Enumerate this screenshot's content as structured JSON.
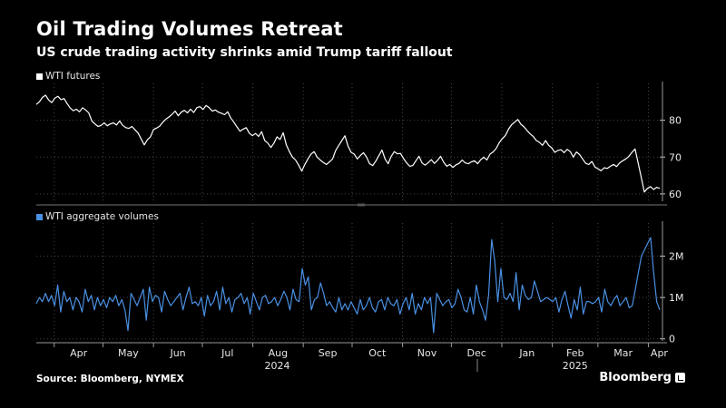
{
  "title": "Oil Trading Volumes Retreat",
  "subtitle": "US crude trading activity shrinks amid Trump tariff fallout",
  "source": "Source: Bloomberg, NYMEX",
  "brand": "Bloomberg",
  "colors": {
    "background": "#000000",
    "price_line": "#ffffff",
    "volume_line": "#4a90e2",
    "grid": "#555555"
  },
  "chart_data": [
    {
      "type": "line",
      "name": "price-panel",
      "title": "",
      "legend": "top-left",
      "series": [
        {
          "name": "WTI futures",
          "x_start": "2024-03-21",
          "x_end": "2025-04-08",
          "values": [
            84.3,
            85.0,
            86.2,
            86.8,
            85.5,
            84.8,
            86.0,
            86.5,
            85.6,
            85.9,
            84.5,
            83.3,
            82.6,
            83.0,
            82.3,
            83.4,
            82.8,
            82.0,
            79.8,
            79.0,
            78.3,
            78.6,
            79.3,
            78.5,
            79.0,
            79.3,
            78.7,
            79.8,
            78.6,
            78.0,
            77.8,
            78.3,
            77.4,
            76.5,
            74.9,
            73.3,
            74.7,
            75.5,
            77.5,
            77.9,
            78.4,
            79.5,
            80.3,
            80.9,
            81.6,
            82.5,
            81.2,
            82.2,
            82.7,
            82.0,
            83.0,
            82.1,
            83.4,
            83.7,
            82.9,
            84.0,
            83.4,
            82.5,
            82.8,
            82.2,
            81.9,
            81.5,
            82.3,
            80.6,
            79.5,
            78.2,
            77.0,
            77.6,
            78.0,
            76.5,
            75.8,
            76.4,
            75.6,
            76.9,
            74.5,
            73.8,
            72.6,
            73.8,
            75.5,
            74.8,
            76.6,
            73.3,
            71.5,
            70.0,
            69.2,
            67.8,
            66.2,
            68.0,
            69.5,
            70.8,
            71.5,
            70.0,
            69.2,
            68.5,
            68.0,
            68.7,
            69.5,
            71.8,
            73.2,
            74.5,
            75.8,
            73.0,
            71.3,
            70.8,
            69.5,
            70.4,
            71.2,
            70.0,
            68.2,
            67.7,
            68.9,
            70.4,
            71.9,
            69.5,
            68.2,
            70.2,
            71.5,
            70.9,
            71.0,
            69.6,
            68.4,
            67.5,
            67.7,
            69.0,
            70.2,
            68.4,
            67.8,
            68.5,
            69.3,
            68.3,
            69.1,
            70.2,
            68.6,
            67.5,
            68.0,
            67.2,
            67.9,
            68.3,
            69.2,
            68.4,
            68.2,
            68.7,
            69.0,
            68.2,
            69.3,
            70.0,
            69.2,
            70.8,
            71.4,
            72.3,
            73.9,
            75.0,
            75.9,
            77.6,
            78.8,
            79.5,
            80.2,
            78.9,
            78.2,
            77.2,
            76.3,
            75.6,
            74.5,
            74.0,
            73.2,
            74.5,
            73.2,
            72.5,
            71.3,
            71.8,
            72.0,
            71.2,
            72.1,
            71.5,
            70.0,
            71.4,
            70.7,
            69.5,
            68.3,
            68.0,
            68.8,
            67.3,
            66.8,
            66.3,
            67.1,
            66.9,
            67.5,
            68.0,
            67.4,
            68.4,
            69.0,
            69.5,
            70.2,
            71.3,
            72.2,
            68.4,
            64.5,
            60.5,
            61.5,
            62.0,
            61.2,
            61.8,
            61.5
          ],
          "color": "#ffffff"
        }
      ],
      "y_axis": {
        "position": "right",
        "ticks": [
          60,
          70,
          80
        ],
        "range": [
          58,
          90
        ]
      },
      "grid": true
    },
    {
      "type": "line",
      "name": "volume-panel",
      "title": "",
      "legend": "top-left",
      "series": [
        {
          "name": "WTI aggregate volumes",
          "x_start": "2024-03-21",
          "x_end": "2025-04-08",
          "values": [
            850000,
            1000000,
            900000,
            1100000,
            900000,
            1050000,
            800000,
            1300000,
            650000,
            1150000,
            900000,
            1000000,
            700000,
            1000000,
            900000,
            650000,
            1200000,
            900000,
            1050000,
            700000,
            1000000,
            800000,
            950000,
            750000,
            1000000,
            900000,
            1050000,
            800000,
            950000,
            700000,
            200000,
            1100000,
            950000,
            800000,
            1000000,
            1200000,
            450000,
            1250000,
            900000,
            1050000,
            1000000,
            650000,
            1150000,
            950000,
            800000,
            900000,
            1000000,
            1100000,
            700000,
            1000000,
            1250000,
            850000,
            900000,
            800000,
            1000000,
            550000,
            1050000,
            800000,
            900000,
            1150000,
            700000,
            1250000,
            850000,
            1000000,
            650000,
            950000,
            1000000,
            1100000,
            850000,
            1000000,
            600000,
            1100000,
            900000,
            700000,
            1000000,
            1050000,
            850000,
            900000,
            1000000,
            800000,
            950000,
            1150000,
            1000000,
            700000,
            1200000,
            950000,
            900000,
            1700000,
            1300000,
            1500000,
            700000,
            950000,
            1000000,
            1350000,
            1100000,
            800000,
            900000,
            750000,
            650000,
            1000000,
            700000,
            850000,
            700000,
            900000,
            750000,
            600000,
            950000,
            700000,
            800000,
            1000000,
            750000,
            650000,
            900000,
            950000,
            700000,
            1000000,
            850000,
            800000,
            950000,
            600000,
            850000,
            1000000,
            700000,
            1100000,
            600000,
            850000,
            700000,
            1000000,
            850000,
            1000000,
            150000,
            1100000,
            950000,
            800000,
            900000,
            950000,
            750000,
            850000,
            1200000,
            1000000,
            700000,
            650000,
            1000000,
            600000,
            1300000,
            900000,
            700000,
            450000,
            1050000,
            2400000,
            1900000,
            900000,
            1700000,
            1000000,
            950000,
            1100000,
            900000,
            1600000,
            700000,
            1300000,
            1050000,
            950000,
            1000000,
            1400000,
            1150000,
            900000,
            950000,
            1000000,
            950000,
            900000,
            1000000,
            650000,
            950000,
            1150000,
            800000,
            500000,
            950000,
            700000,
            1250000,
            600000,
            900000,
            900000,
            850000,
            900000,
            1000000,
            650000,
            1200000,
            900000,
            800000,
            950000,
            1050000,
            800000,
            900000,
            1000000,
            750000,
            800000,
            1200000,
            1600000,
            2000000,
            2150000,
            2300000,
            2450000,
            1600000,
            900000,
            700000
          ],
          "color": "#4a90e2"
        }
      ],
      "y_axis": {
        "position": "right",
        "ticks": [
          0,
          1000000,
          2000000
        ],
        "tick_labels": [
          "0",
          "1M",
          "2M"
        ],
        "range": [
          -50000,
          2800000
        ]
      },
      "grid": true
    }
  ],
  "legend_top": "WTI futures",
  "legend_bottom": "WTI aggregate volumes",
  "x_axis": {
    "months": [
      "Apr",
      "May",
      "Jun",
      "Jul",
      "Aug",
      "Sep",
      "Oct",
      "Nov",
      "Dec",
      "Jan",
      "Feb",
      "Mar",
      "Apr"
    ],
    "month_starts": [
      "2024-04-01",
      "2024-05-01",
      "2024-06-01",
      "2024-07-01",
      "2024-08-01",
      "2024-09-01",
      "2024-10-01",
      "2024-11-01",
      "2024-12-01",
      "2025-01-01",
      "2025-02-01",
      "2025-03-01",
      "2025-04-01"
    ],
    "years": [
      "2024",
      "2025"
    ],
    "year_centers": [
      "2024-08-16",
      "2025-02-15"
    ]
  }
}
